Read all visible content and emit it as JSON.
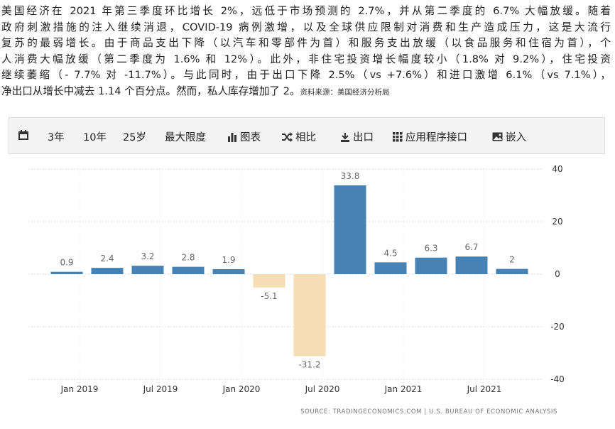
{
  "article": {
    "lines": [
      "美国经济在 2021 年第三季度环比增长 2%，远低于市场预测的 2.7%，并从第二季度的 6.7% 大幅放缓。随着",
      "政府刺激措施的注入继续消退，COVID-19 病例激增，以及全球供应限制对消费和生产造成压力，这是大流行",
      "复苏的最弱增长。由于商品支出下降（以汽车和零部件为首）和服务支出放缓（以食品服务和住宿为首），个",
      "人消费大幅放缓（第二季度为 1.6% 和 12%）。此外，非住宅投资增长幅度较小（1.8% 对 9.2%），住宅投资",
      "继续萎缩（- 7.7% 对 -11.7%）。与此同时，由于出口下降 2.5%（vs +7.6%）和进口激增 6.1%（vs 7.1%），",
      "净出口从增长中减去 1.14 个百分点。然而，私人库存增加了 2。"
    ],
    "source": "资料来源：美国经济分析局"
  },
  "toolbar": [
    "3年",
    "10年",
    "25岁",
    "最大限度",
    "图表",
    "相比",
    "出口",
    "应用程序接口",
    "嵌入"
  ],
  "chart_data": {
    "type": "bar",
    "categories": [
      null,
      null,
      null,
      null,
      null,
      null,
      null,
      null,
      null,
      null,
      null,
      null
    ],
    "values": [
      0.9,
      2.4,
      3.2,
      2.8,
      1.9,
      -5.1,
      -31.2,
      33.8,
      4.5,
      6.3,
      6.7,
      2
    ],
    "color": "#4682b4",
    "negative_color": "#f5deb3",
    "ylim": [
      -40,
      40
    ],
    "yticks": [
      -40,
      -20,
      0,
      20,
      40
    ],
    "grid": true,
    "xtick_labels": [
      "Jan 2019",
      "Jul 2019",
      "Jan 2020",
      "Jul 2020",
      "Jan 2021",
      "Jul 2021"
    ],
    "source": "SOURCE: TRADINGECONOMICS.COM | U.S. BUREAU OF ECONOMIC ANALYSIS"
  }
}
